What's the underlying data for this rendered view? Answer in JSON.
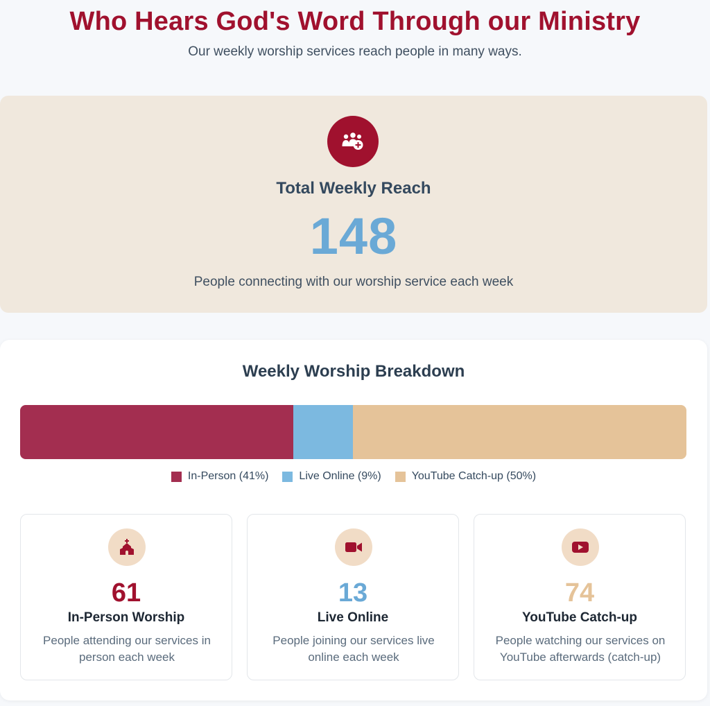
{
  "header": {
    "title": "Who Hears God's Word Through our Ministry",
    "subtitle": "Our weekly worship services reach people in many ways."
  },
  "reach": {
    "icon": "people-group-plus-icon",
    "label": "Total Weekly Reach",
    "number": "148",
    "description": "People connecting with our worship service each week"
  },
  "breakdown": {
    "title": "Weekly Worship Breakdown",
    "segments": [
      {
        "key": "in_person",
        "percent": 41,
        "color": "#a32e50"
      },
      {
        "key": "live_online",
        "percent": 9,
        "color": "#7cb9e0"
      },
      {
        "key": "youtube",
        "percent": 50,
        "color": "#e5c399"
      }
    ],
    "legend": [
      {
        "label": "In-Person (41%)",
        "color": "#a32e50"
      },
      {
        "label": "Live Online (9%)",
        "color": "#7cb9e0"
      },
      {
        "label": "YouTube Catch-up (50%)",
        "color": "#e5c399"
      }
    ]
  },
  "cards": [
    {
      "icon": "church-icon",
      "number": "61",
      "number_color": "#a0112e",
      "title": "In-Person Worship",
      "description": "People attending our services in person each week"
    },
    {
      "icon": "video-camera-icon",
      "number": "13",
      "number_color": "#6aa9d6",
      "title": "Live Online",
      "description": "People joining our services live online each week"
    },
    {
      "icon": "youtube-icon",
      "number": "74",
      "number_color": "#e5c399",
      "title": "YouTube Catch-up",
      "description": "People watching our services on YouTube afterwards (catch-up)"
    }
  ]
}
